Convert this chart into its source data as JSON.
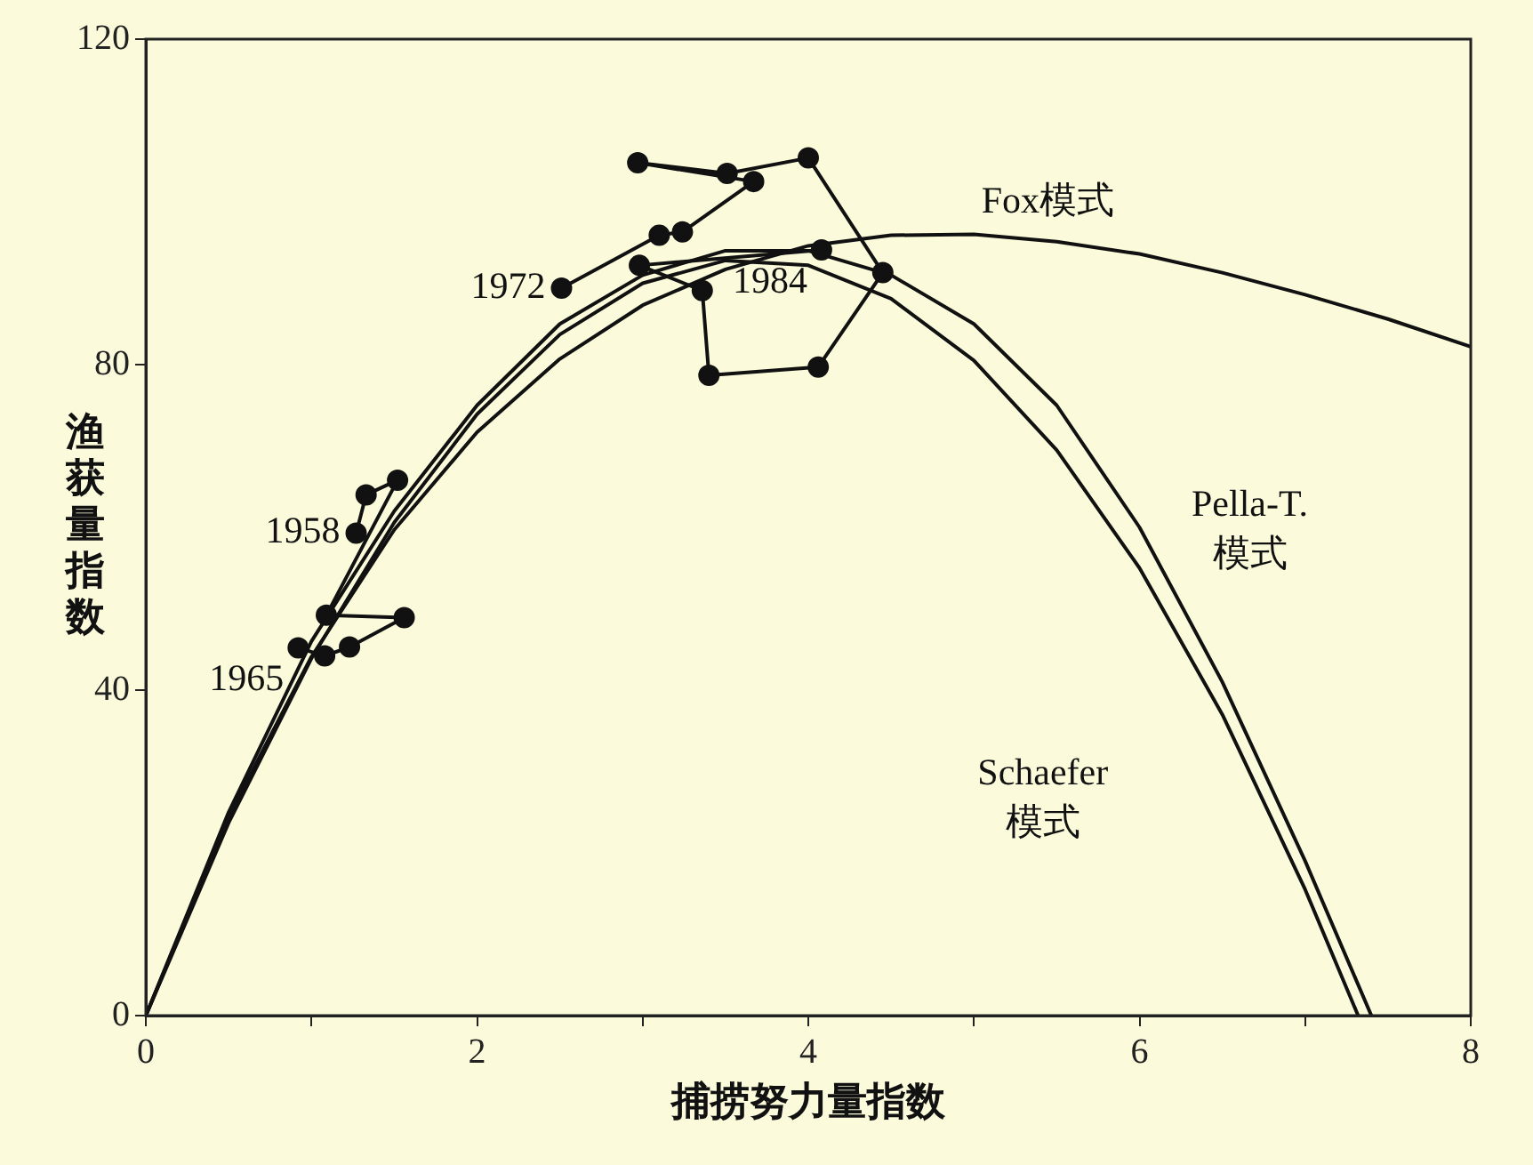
{
  "chart_data": {
    "type": "line",
    "xlabel": "捕捞努力量指数",
    "ylabel": "渔获量指数",
    "xlim": [
      0,
      8
    ],
    "ylim": [
      0,
      120
    ],
    "xticks": [
      0,
      {
        "value": 1,
        "label": null
      },
      2,
      {
        "value": 3,
        "label": null
      },
      4,
      {
        "value": 5,
        "label": null
      },
      6,
      {
        "value": 7,
        "label": null
      },
      8
    ],
    "yticks": [
      0,
      40,
      80,
      120
    ],
    "grid": false,
    "legend": false,
    "series": [
      {
        "color": "#111111",
        "marker": "circle",
        "line_style": "solid",
        "x": [
          1.27,
          1.33,
          1.52,
          1.09,
          1.56,
          1.23,
          1.08,
          0.92
        ],
        "values": [
          59.3,
          64.0,
          65.8,
          49.2,
          48.9,
          45.3,
          44.2,
          45.2
        ]
      },
      {
        "color": "#111111",
        "marker": "circle",
        "line_style": "solid",
        "x": [
          2.51,
          3.1,
          3.24,
          3.67,
          2.97,
          3.51,
          4.0,
          4.45,
          4.06,
          3.4,
          3.36,
          2.98,
          4.08
        ],
        "values": [
          89.4,
          95.9,
          96.3,
          102.5,
          104.8,
          103.5,
          105.4,
          91.3,
          79.7,
          78.7,
          89.1,
          92.2,
          94.1
        ]
      },
      {
        "color": "#111111",
        "marker": "none",
        "line_style": "solid",
        "x": [
          0,
          0.5,
          1,
          1.5,
          2,
          2.5,
          3,
          3.5,
          4,
          4.5,
          5,
          5.5,
          6,
          6.5,
          7,
          7.5,
          8
        ],
        "values": [
          0,
          24.5,
          44.1,
          59.7,
          71.7,
          80.7,
          87.3,
          91.7,
          94.6,
          95.9,
          96.0,
          95.1,
          93.6,
          91.3,
          88.6,
          85.6,
          82.2
        ]
      },
      {
        "color": "#111111",
        "marker": "none",
        "line_style": "solid",
        "x": [
          0,
          0.5,
          1,
          1.5,
          2,
          2.5,
          3,
          3.5,
          4,
          4.5,
          5,
          5.5,
          6,
          6.5,
          7,
          7.4
        ],
        "values": [
          0,
          25,
          46,
          62,
          75,
          85,
          91,
          94,
          94,
          91,
          85,
          75,
          60,
          41,
          19,
          0
        ]
      },
      {
        "color": "#111111",
        "marker": "none",
        "line_style": "solid",
        "x": [
          0,
          0.5,
          1,
          1.5,
          2,
          2.5,
          3,
          3.5,
          4,
          4.5,
          5,
          5.5,
          6,
          6.5,
          7,
          7.32
        ],
        "values": [
          0,
          23.7,
          43.9,
          60.6,
          73.9,
          83.7,
          90.0,
          92.8,
          92.2,
          88.1,
          80.5,
          69.5,
          55.0,
          37.0,
          15.5,
          0
        ]
      }
    ],
    "annotations": [
      {
        "text": "1958",
        "x": 1.27,
        "y": 59.3
      },
      {
        "text": "1965",
        "x": 0.92,
        "y": 45.2
      },
      {
        "text": "1972",
        "x": 2.51,
        "y": 89.4
      },
      {
        "text": "1984",
        "x": 4.08,
        "y": 94.1
      },
      {
        "text": "Fox模式",
        "x": 5.5,
        "y": 95.1
      },
      {
        "text": "Pella-T.\n模式",
        "x": 6.0,
        "y": 60
      },
      "Schaefer\n模式"
    ]
  }
}
